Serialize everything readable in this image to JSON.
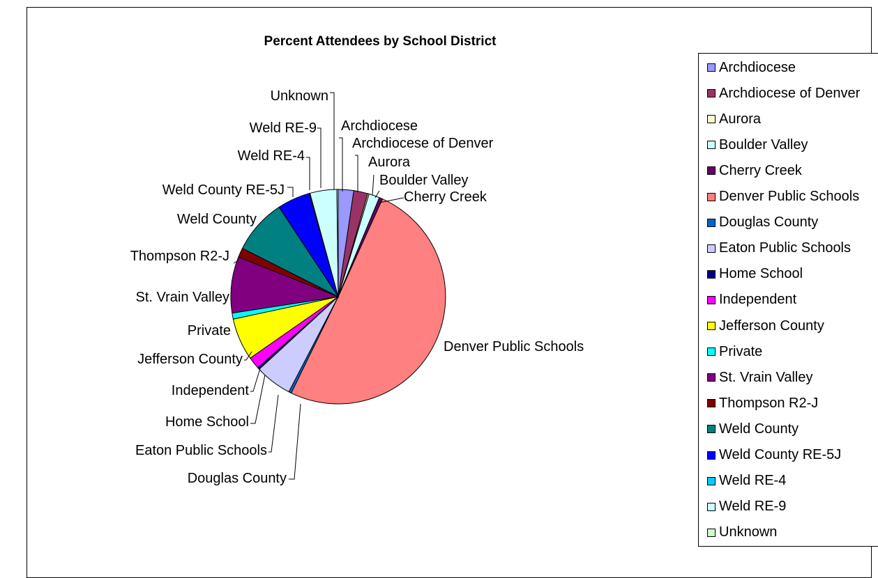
{
  "chart_data": {
    "type": "pie",
    "title": "Percent Attendees by School District",
    "legend_position": "right",
    "slices": [
      {
        "name": "Archdiocese",
        "value": 2.3,
        "color": "#9999FF"
      },
      {
        "name": "Archdiocese of Denver",
        "value": 2.1,
        "color": "#993366"
      },
      {
        "name": "Aurora",
        "value": 0.2,
        "color": "#FFFFCC"
      },
      {
        "name": "Boulder Valley",
        "value": 1.6,
        "color": "#CCFFFF"
      },
      {
        "name": "Cherry Creek",
        "value": 0.5,
        "color": "#660066"
      },
      {
        "name": "Denver Public Schools",
        "value": 50.0,
        "color": "#FF8080"
      },
      {
        "name": "Douglas County",
        "value": 0.4,
        "color": "#0066CC"
      },
      {
        "name": "Eaton Public Schools",
        "value": 5.5,
        "color": "#CCCCFF"
      },
      {
        "name": "Home School",
        "value": 0.3,
        "color": "#000080"
      },
      {
        "name": "Independent",
        "value": 1.8,
        "color": "#FF00FF"
      },
      {
        "name": "Jefferson County",
        "value": 6.3,
        "color": "#FFFF00"
      },
      {
        "name": "Private",
        "value": 0.9,
        "color": "#00FFFF"
      },
      {
        "name": "St. Vrain Valley",
        "value": 8.4,
        "color": "#800080"
      },
      {
        "name": "Thompson R2-J",
        "value": 1.4,
        "color": "#800000"
      },
      {
        "name": "Weld County",
        "value": 8.2,
        "color": "#008080"
      },
      {
        "name": "Weld County RE-5J",
        "value": 4.9,
        "color": "#0000FF"
      },
      {
        "name": "Weld RE-4",
        "value": 0.1,
        "color": "#00CCFF"
      },
      {
        "name": "Weld RE-9",
        "value": 4.0,
        "color": "#CCFFFF"
      },
      {
        "name": "Unknown",
        "value": 0.2,
        "color": "#CCFFCC"
      }
    ]
  }
}
